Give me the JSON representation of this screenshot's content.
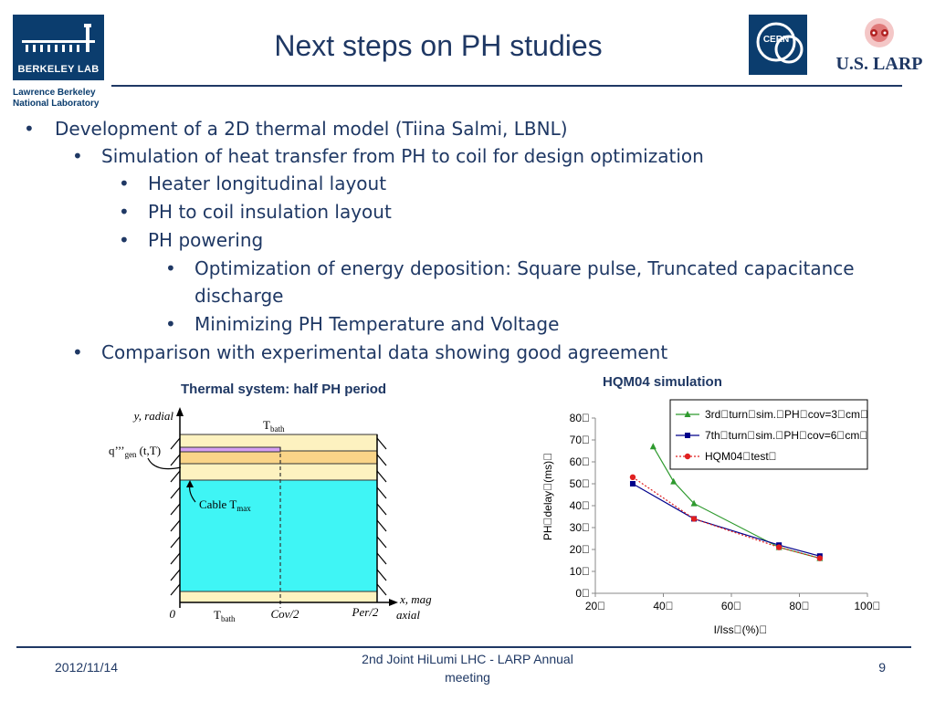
{
  "header": {
    "title": "Next steps on PH studies",
    "berkeley_logo_text": "BERKELEY LAB",
    "lbnl_line1": "Lawrence Berkeley",
    "lbnl_line2": "National Laboratory",
    "cern_logo_text": "CERN",
    "larp_logo_text": "U.S. LARP"
  },
  "bullets": [
    {
      "level": 1,
      "text": "Development of a 2D thermal model (Tiina Salmi, LBNL)"
    },
    {
      "level": 2,
      "text": "Simulation of heat transfer from PH to coil for design optimization"
    },
    {
      "level": 3,
      "text": "Heater longitudinal layout"
    },
    {
      "level": 3,
      "text": "PH to coil insulation layout"
    },
    {
      "level": 3,
      "text": "PH powering"
    },
    {
      "level": 4,
      "text": "Optimization of energy deposition: Square pulse, Truncated capacitance"
    },
    {
      "level": 4,
      "text": "discharge",
      "continuation": true
    },
    {
      "level": 4,
      "text": "Minimizing PH Temperature and Voltage"
    },
    {
      "level": 2,
      "text": "Comparison with experimental data showing good agreement"
    }
  ],
  "thermal_diagram": {
    "title": "Thermal system: half PH period",
    "y_label": "y, radial",
    "x_label_line1": "x, mag",
    "x_label_line2": "axial",
    "tbath_top": "T",
    "tbath_top_sub": "bath",
    "tbath_bottom": "T",
    "tbath_bottom_sub": "bath",
    "q_label": "q’’’",
    "q_sub": "gen",
    "q_suffix": "(t,T)",
    "cable_label": "Cable T",
    "cable_sub": "max",
    "origin_label": "0",
    "cov_label": "Cov/2",
    "per_label": "Per/2"
  },
  "chart_title": "HQM04 simulation",
  "chart_data": {
    "type": "line",
    "title": "HQM04 simulation",
    "xlabel": "I/Iss\u0000(%)\u0000",
    "ylabel": "PH\u0000delay\u0000(ms)\u0000",
    "xlim": [
      20,
      100
    ],
    "ylim": [
      0,
      80
    ],
    "x_ticks": [
      "20\u0000",
      "40\u0000",
      "60\u0000",
      "80\u0000",
      "100\u0000"
    ],
    "y_ticks": [
      "0\u0000",
      "10\u0000",
      "20\u0000",
      "30\u0000",
      "40\u0000",
      "50\u0000",
      "60\u0000",
      "70\u0000",
      "80\u0000"
    ],
    "legend_position": "top-right",
    "grid": false,
    "series": [
      {
        "name": "3rd\u0000turn\u0000sim.\u0000PH\u0000cov=3\u0000cm\u0000",
        "color": "#2e9a2e",
        "marker": "triangle",
        "dash": "solid",
        "x": [
          37,
          43,
          49,
          74,
          86
        ],
        "y": [
          67,
          51,
          41,
          21,
          16
        ]
      },
      {
        "name": "7th\u0000turn\u0000sim.\u0000PH\u0000cov=6\u0000cm\u0000",
        "color": "#00008b",
        "marker": "square",
        "dash": "solid",
        "x": [
          31,
          49,
          74,
          86
        ],
        "y": [
          50,
          34,
          22,
          17
        ]
      },
      {
        "name": "HQM04\u0000test\u0000",
        "color": "#e02020",
        "marker": "circle",
        "dash": "dotted",
        "x": [
          31,
          49,
          74,
          86
        ],
        "y": [
          53,
          34,
          21,
          16
        ]
      }
    ]
  },
  "footer": {
    "date": "2012/11/14",
    "center_line1": "2nd Joint HiLumi LHC - LARP Annual",
    "center_line2": "meeting",
    "page": "9"
  },
  "colors": {
    "title_blue": "#1f3864",
    "berkeley_blue": "#0b3d6e",
    "cable_cyan": "#3ff5f5",
    "insulation_yellow": "#fdf2c0",
    "insulation_orange": "#fad488",
    "heater_violet": "#d69ff2"
  }
}
